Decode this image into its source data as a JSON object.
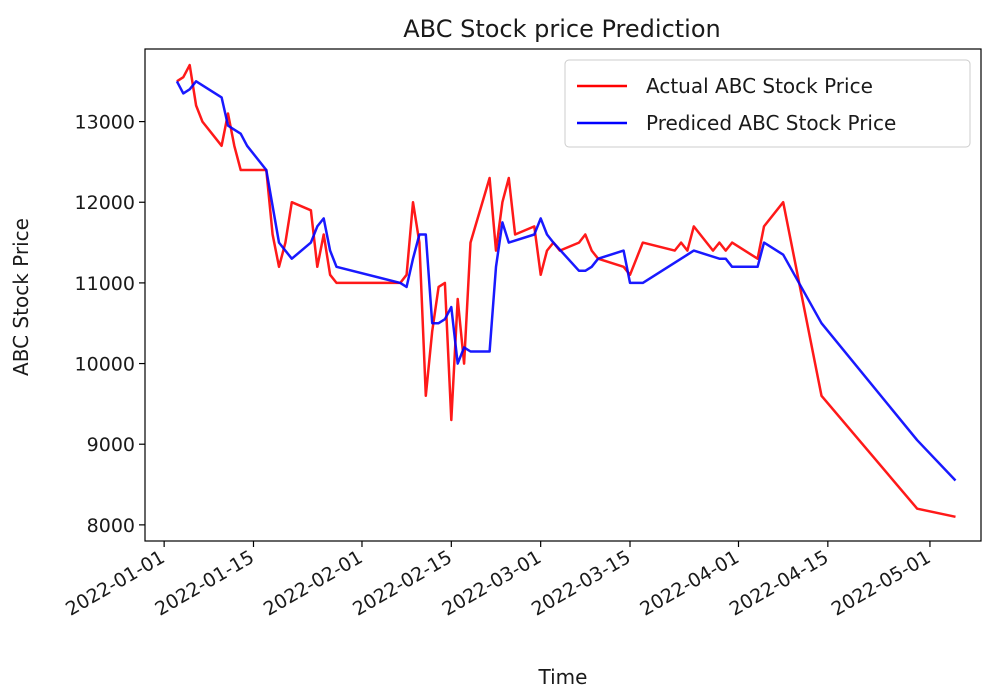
{
  "chart_data": {
    "type": "line",
    "title": "ABC Stock price Prediction",
    "xlabel": "Time",
    "ylabel": "ABC Stock Price",
    "x_ticks": [
      "2022-01-01",
      "2022-01-15",
      "2022-02-01",
      "2022-02-15",
      "2022-03-01",
      "2022-03-15",
      "2022-04-01",
      "2022-04-15",
      "2022-05-01"
    ],
    "y_ticks": [
      8000,
      9000,
      10000,
      11000,
      12000,
      13000
    ],
    "xlim": [
      "2021-12-29",
      "2022-05-09"
    ],
    "ylim": [
      7800,
      13900
    ],
    "grid": false,
    "legend_position": "top-right",
    "series": [
      {
        "name": "Actual ABC Stock Price",
        "color": "#ff0000",
        "x": [
          "2022-01-03",
          "2022-01-04",
          "2022-01-05",
          "2022-01-06",
          "2022-01-07",
          "2022-01-10",
          "2022-01-11",
          "2022-01-12",
          "2022-01-13",
          "2022-01-14",
          "2022-01-17",
          "2022-01-18",
          "2022-01-19",
          "2022-01-20",
          "2022-01-21",
          "2022-01-24",
          "2022-01-25",
          "2022-01-26",
          "2022-01-27",
          "2022-01-28",
          "2022-02-07",
          "2022-02-08",
          "2022-02-09",
          "2022-02-10",
          "2022-02-11",
          "2022-02-12",
          "2022-02-13",
          "2022-02-14",
          "2022-02-15",
          "2022-02-16",
          "2022-02-17",
          "2022-02-18",
          "2022-02-21",
          "2022-02-22",
          "2022-02-23",
          "2022-02-24",
          "2022-02-25",
          "2022-02-28",
          "2022-03-01",
          "2022-03-02",
          "2022-03-03",
          "2022-03-04",
          "2022-03-07",
          "2022-03-08",
          "2022-03-09",
          "2022-03-10",
          "2022-03-14",
          "2022-03-15",
          "2022-03-17",
          "2022-03-22",
          "2022-03-23",
          "2022-03-24",
          "2022-03-25",
          "2022-03-28",
          "2022-03-29",
          "2022-03-30",
          "2022-03-31",
          "2022-04-04",
          "2022-04-05",
          "2022-04-08",
          "2022-04-14",
          "2022-04-29",
          "2022-05-05"
        ],
        "y": [
          13500,
          13550,
          13700,
          13200,
          13000,
          12700,
          13100,
          12700,
          12400,
          12400,
          12400,
          11600,
          11200,
          11500,
          12000,
          11900,
          11200,
          11600,
          11100,
          11000,
          11000,
          11100,
          12000,
          11500,
          9600,
          10400,
          10950,
          11000,
          9300,
          10800,
          10000,
          11500,
          12300,
          11400,
          12000,
          12300,
          11600,
          11700,
          11100,
          11400,
          11500,
          11400,
          11500,
          11600,
          11400,
          11300,
          11200,
          11100,
          11500,
          11400,
          11500,
          11400,
          11700,
          11400,
          11500,
          11400,
          11500,
          11300,
          11700,
          12000,
          9600,
          8200,
          8100
        ]
      },
      {
        "name": "Prediced ABC Stock Price",
        "color": "#0000ff",
        "x": [
          "2022-01-03",
          "2022-01-04",
          "2022-01-05",
          "2022-01-06",
          "2022-01-07",
          "2022-01-10",
          "2022-01-11",
          "2022-01-12",
          "2022-01-13",
          "2022-01-14",
          "2022-01-17",
          "2022-01-19",
          "2022-01-21",
          "2022-01-24",
          "2022-01-25",
          "2022-01-26",
          "2022-01-27",
          "2022-01-28",
          "2022-02-07",
          "2022-02-08",
          "2022-02-09",
          "2022-02-10",
          "2022-02-11",
          "2022-02-12",
          "2022-02-13",
          "2022-02-14",
          "2022-02-15",
          "2022-02-16",
          "2022-02-17",
          "2022-02-18",
          "2022-02-21",
          "2022-02-22",
          "2022-02-23",
          "2022-02-24",
          "2022-02-28",
          "2022-03-01",
          "2022-03-02",
          "2022-03-03",
          "2022-03-07",
          "2022-03-08",
          "2022-03-09",
          "2022-03-10",
          "2022-03-14",
          "2022-03-15",
          "2022-03-17",
          "2022-03-23",
          "2022-03-24",
          "2022-03-25",
          "2022-03-29",
          "2022-03-30",
          "2022-03-31",
          "2022-04-04",
          "2022-04-05",
          "2022-04-08",
          "2022-04-14",
          "2022-04-29",
          "2022-05-05"
        ],
        "y": [
          13500,
          13350,
          13400,
          13500,
          13450,
          13300,
          12950,
          12900,
          12850,
          12700,
          12400,
          11500,
          11300,
          11500,
          11700,
          11800,
          11400,
          11200,
          11000,
          10950,
          11300,
          11600,
          11600,
          10500,
          10500,
          10550,
          10700,
          10000,
          10200,
          10150,
          10150,
          11200,
          11750,
          11500,
          11600,
          11800,
          11600,
          11500,
          11150,
          11150,
          11200,
          11300,
          11400,
          11000,
          11000,
          11300,
          11350,
          11400,
          11300,
          11300,
          11200,
          11200,
          11500,
          11350,
          10500,
          9050,
          8550
        ]
      }
    ]
  }
}
